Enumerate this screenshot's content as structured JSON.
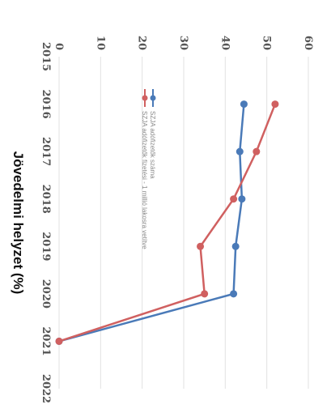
{
  "chart_data": {
    "type": "line",
    "title": "Jövedelmi helyzet (%)",
    "categories": [
      "2015",
      "2016",
      "2017",
      "2018",
      "2019",
      "2020",
      "2021",
      "2022"
    ],
    "ylim": [
      0,
      60
    ],
    "yticks": [
      "0",
      "10",
      "20",
      "30",
      "40",
      "50",
      "60"
    ],
    "grid": true,
    "legend_position": "bottom",
    "series": [
      {
        "name": "SZJA adófizetők száma",
        "color": "#4a7ab8",
        "values": [
          null,
          44.5,
          43.5,
          44,
          42.5,
          42,
          0,
          null
        ]
      },
      {
        "name": "SZJA adófizetők fizetési - 1 millió lakosra vetítve",
        "color": "#d06060",
        "values": [
          null,
          52,
          47.5,
          42,
          34,
          35,
          0,
          null
        ]
      }
    ]
  }
}
